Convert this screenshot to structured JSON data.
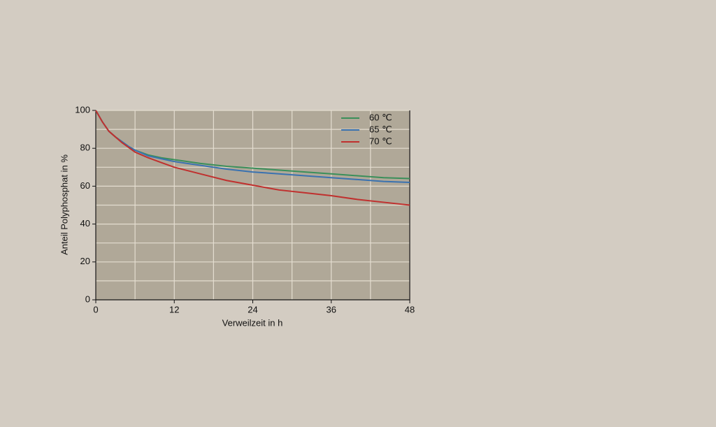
{
  "chart_data": {
    "type": "line",
    "xlabel": "Verweilzeit in h",
    "ylabel": "Anteil Polyphosphat in %",
    "x": [
      0,
      1,
      2,
      3,
      4,
      5,
      6,
      8,
      10,
      12,
      16,
      20,
      24,
      28,
      32,
      36,
      40,
      44,
      48
    ],
    "series": [
      {
        "name": "60 ℃",
        "color": "#3a8f5a",
        "values": [
          100,
          94,
          89,
          86,
          83.5,
          81,
          79,
          76.5,
          75,
          74,
          72,
          70.5,
          69.5,
          68.5,
          67.5,
          66.5,
          65.5,
          64.5,
          64
        ]
      },
      {
        "name": "65 ℃",
        "color": "#3a72b0",
        "values": [
          100,
          94,
          89,
          86,
          83.5,
          81,
          79,
          76,
          74.5,
          73,
          71,
          69,
          67.5,
          66.5,
          65.5,
          64.5,
          63.5,
          62.5,
          62
        ]
      },
      {
        "name": "70 ℃",
        "color": "#c0302e",
        "values": [
          100,
          94,
          89,
          86,
          83,
          80.5,
          78,
          75,
          72.5,
          70,
          66.5,
          63,
          60.5,
          58,
          56.5,
          55,
          53,
          51.5,
          50
        ]
      }
    ],
    "xlim": [
      0,
      48
    ],
    "xticks": [
      0,
      12,
      24,
      36,
      48
    ],
    "minor_xticks": [
      6,
      18,
      30,
      42
    ],
    "ylim": [
      0,
      100
    ],
    "yticks": [
      0,
      20,
      40,
      60,
      80,
      100
    ],
    "minor_yticks": [
      10,
      30,
      50,
      70,
      90
    ],
    "grid": true,
    "legend": "upper right"
  }
}
